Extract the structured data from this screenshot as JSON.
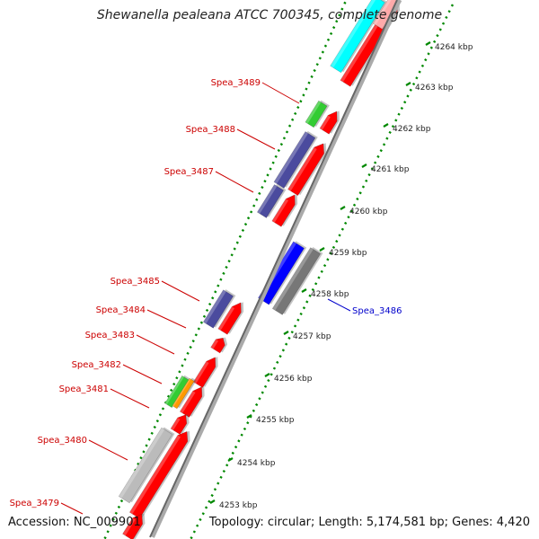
{
  "title": "Shewanella pealeana ATCC 700345, complete genome",
  "footer": {
    "accession": "Accession: NC_009901",
    "summary": "Topology: circular; Length: 5,174,581 bp; Genes: 4,420"
  },
  "colors": {
    "label_red": "#cc0000",
    "label_blue": "#0000cc",
    "gc_ticks": "#008800",
    "axis_gray": "#888888"
  },
  "scale": {
    "ticks": [
      "4253 kbp",
      "4254 kbp",
      "4255 kbp",
      "4256 kbp",
      "4257 kbp",
      "4258 kbp",
      "4259 kbp",
      "4260 kbp",
      "4261 kbp",
      "4262 kbp",
      "4263 kbp",
      "4264 kbp"
    ]
  },
  "gene_labels": [
    {
      "text": "Spea_3489",
      "side": "left"
    },
    {
      "text": "Spea_3488",
      "side": "left"
    },
    {
      "text": "Spea_3487",
      "side": "left"
    },
    {
      "text": "Spea_3485",
      "side": "left"
    },
    {
      "text": "Spea_3484",
      "side": "left"
    },
    {
      "text": "Spea_3483",
      "side": "left"
    },
    {
      "text": "Spea_3482",
      "side": "left"
    },
    {
      "text": "Spea_3481",
      "side": "left"
    },
    {
      "text": "Spea_3480",
      "side": "left"
    },
    {
      "text": "Spea_3479",
      "side": "left"
    },
    {
      "text": "Spea_3486",
      "side": "right"
    }
  ],
  "features": [
    {
      "name": "cyan-feature",
      "color": "#00ffff"
    },
    {
      "name": "top-red-cds",
      "color": "#ff0000"
    },
    {
      "name": "top-pink-cds",
      "color": "#ffaaaa"
    },
    {
      "name": "green-feature-3489",
      "color": "#33cc33"
    },
    {
      "name": "cds-3489",
      "color": "#ff0000"
    },
    {
      "name": "purple-feature-3488",
      "color": "#4b4b9e"
    },
    {
      "name": "cds-3488",
      "color": "#ff0000"
    },
    {
      "name": "purple-feature-3487",
      "color": "#4b4b9e"
    },
    {
      "name": "cds-3487",
      "color": "#ff0000"
    },
    {
      "name": "blue-feature-3486",
      "color": "#0000ff"
    },
    {
      "name": "gray-feature-3486",
      "color": "#777777"
    },
    {
      "name": "purple-feature-3485",
      "color": "#4b4b9e"
    },
    {
      "name": "cds-3485",
      "color": "#ff0000"
    },
    {
      "name": "cds-3484",
      "color": "#ff0000"
    },
    {
      "name": "cds-3483",
      "color": "#ff0000"
    },
    {
      "name": "green-feature-3482",
      "color": "#33cc33"
    },
    {
      "name": "orange-feature-3482",
      "color": "#ff9900"
    },
    {
      "name": "cds-3482",
      "color": "#ff0000"
    },
    {
      "name": "cds-3481",
      "color": "#ff0000"
    },
    {
      "name": "lightgray-feature-3480",
      "color": "#bbbbbb"
    },
    {
      "name": "cds-3480",
      "color": "#ff0000"
    },
    {
      "name": "cds-3479",
      "color": "#ff0000"
    }
  ]
}
